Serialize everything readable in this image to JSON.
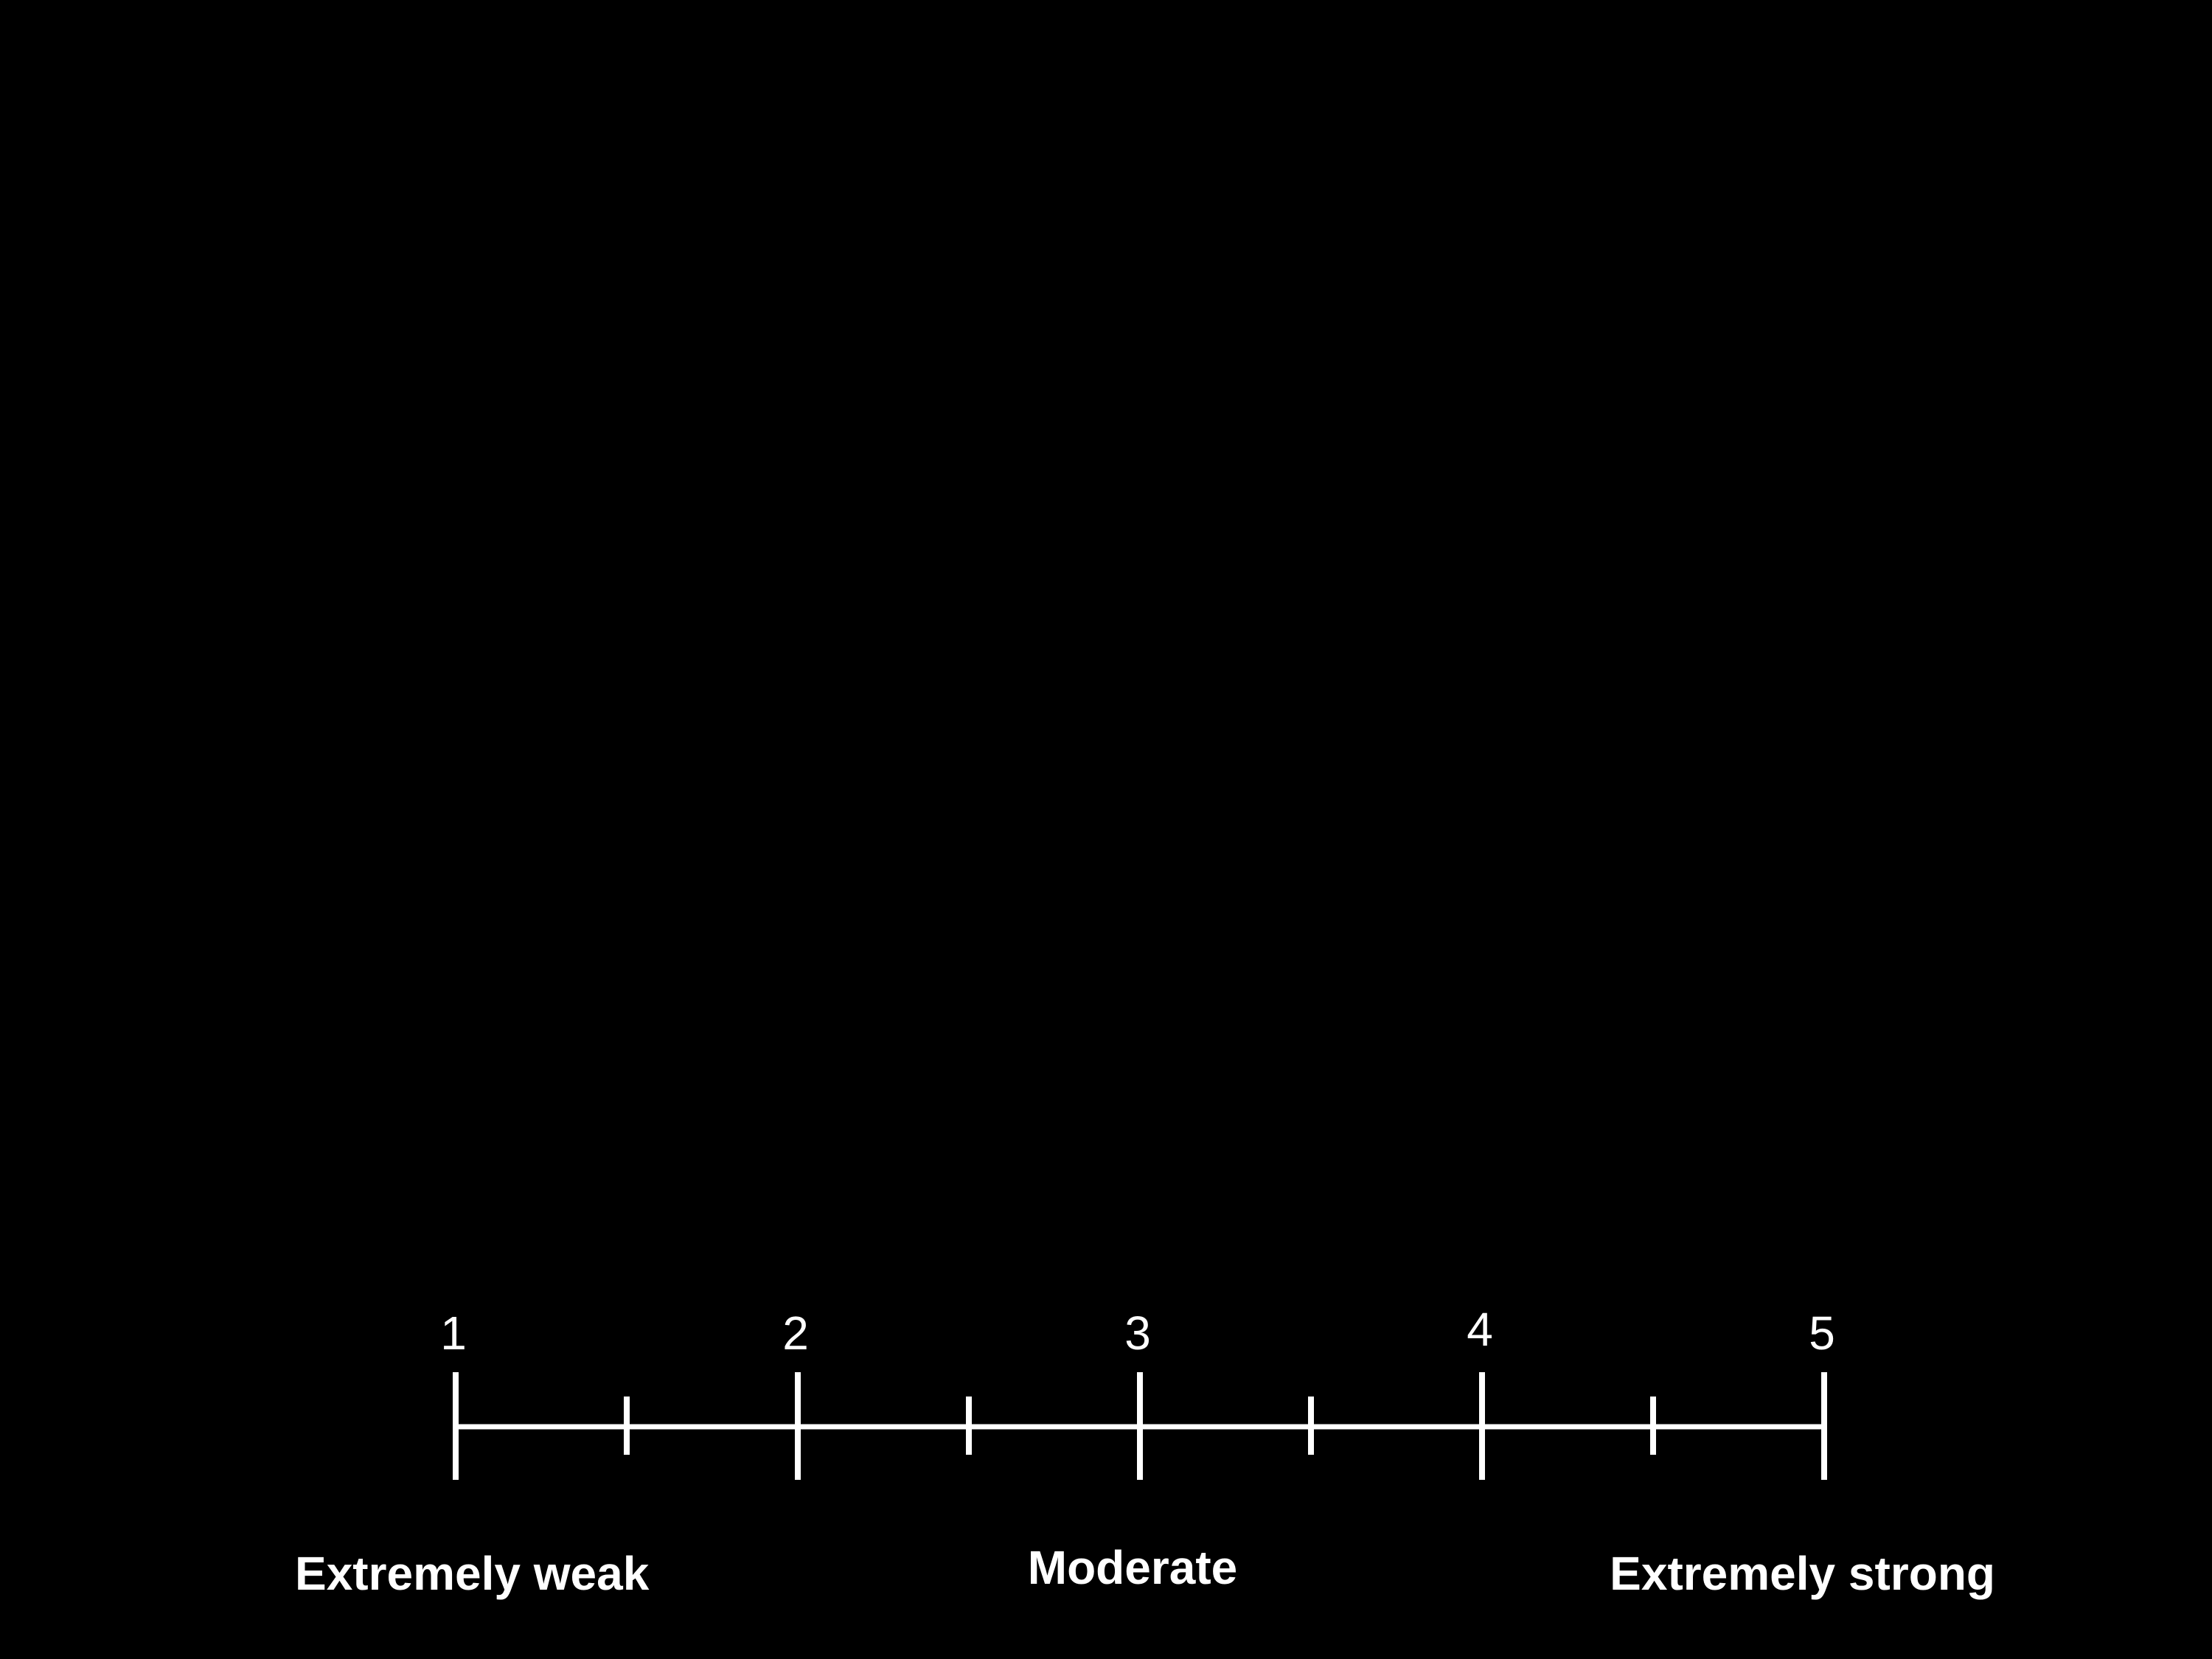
{
  "colors": {
    "background": "#000000",
    "foreground": "#ffffff"
  },
  "scale": {
    "min": 1,
    "max": 5,
    "major_ticks": [
      {
        "value": 1,
        "label": "1"
      },
      {
        "value": 2,
        "label": "2"
      },
      {
        "value": 3,
        "label": "3"
      },
      {
        "value": 4,
        "label": "4"
      },
      {
        "value": 5,
        "label": "5"
      }
    ],
    "minor_ticks": [
      1.5,
      2.5,
      3.5,
      4.5
    ],
    "anchors": {
      "low": "Extremely weak",
      "mid": "Moderate",
      "high": "Extremely strong"
    }
  }
}
